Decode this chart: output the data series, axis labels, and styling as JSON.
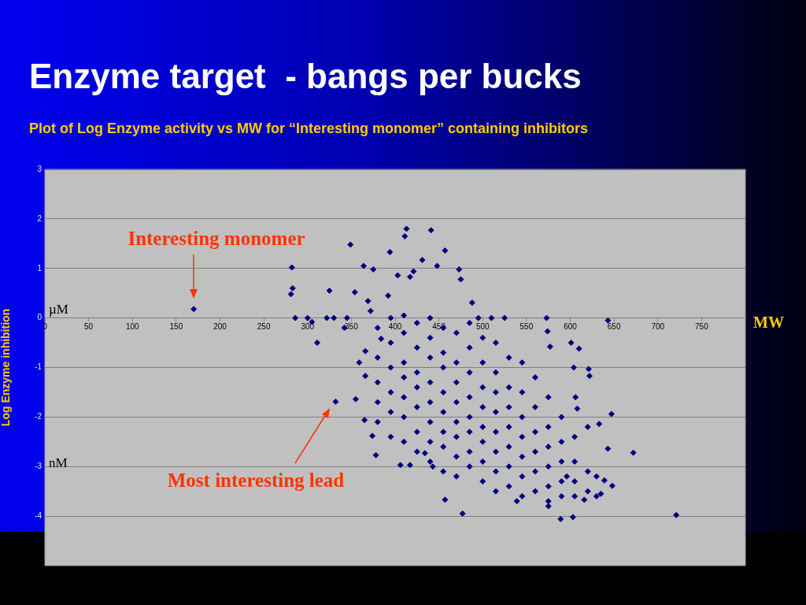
{
  "chart_data": {
    "type": "scatter",
    "title": "Enzyme target  - bangs per bucks",
    "subtitle": "Plot of Log Enzyme activity vs MW for “Interesting monomer” containing inhibitors",
    "xlabel": "MW",
    "ylabel": "Log Enzyme inhibition",
    "xlim": [
      0,
      800
    ],
    "xticks": [
      0,
      50,
      100,
      150,
      200,
      250,
      300,
      350,
      400,
      450,
      500,
      550,
      600,
      650,
      700,
      750
    ],
    "ylim": [
      -5,
      3
    ],
    "yticks": [
      -4,
      -3,
      -2,
      -1,
      0,
      1,
      2,
      3
    ],
    "grid": "y",
    "legend": false,
    "marker": "diamond",
    "annotations": [
      "Interesting monomer",
      "Most interesting lead",
      "µM",
      "nM"
    ],
    "series": [
      {
        "color": "#000080",
        "x": [
          170,
          332,
          349,
          282,
          283,
          281,
          286,
          300,
          305,
          311,
          325,
          322,
          330,
          345,
          342,
          364,
          375,
          394,
          413,
          411,
          441,
          431,
          457,
          448,
          473,
          475,
          421,
          417,
          403,
          354,
          369,
          372,
          392,
          488,
          495,
          510,
          525,
          573,
          574,
          577,
          601,
          610,
          643,
          604,
          621,
          622,
          606,
          608,
          647,
          633,
          672,
          643,
          721,
          603,
          589,
          477,
          457,
          539,
          575,
          616,
          635,
          648,
          639,
          596,
          378,
          374,
          365,
          355,
          366,
          359,
          366,
          384,
          406,
          417,
          434,
          443,
          380,
          380,
          380,
          380,
          380,
          395,
          395,
          395,
          395,
          395,
          395,
          410,
          410,
          410,
          410,
          410,
          410,
          410,
          425,
          425,
          425,
          425,
          425,
          425,
          425,
          440,
          440,
          440,
          440,
          440,
          440,
          440,
          440,
          455,
          455,
          455,
          455,
          455,
          455,
          455,
          455,
          470,
          470,
          470,
          470,
          470,
          470,
          470,
          470,
          485,
          485,
          485,
          485,
          485,
          485,
          485,
          485,
          500,
          500,
          500,
          500,
          500,
          500,
          500,
          500,
          515,
          515,
          515,
          515,
          515,
          515,
          515,
          515,
          530,
          530,
          530,
          530,
          530,
          530,
          530,
          545,
          545,
          545,
          545,
          545,
          545,
          545,
          560,
          560,
          560,
          560,
          560,
          560,
          575,
          575,
          575,
          575,
          575,
          575,
          590,
          590,
          590,
          590,
          590,
          605,
          605,
          605,
          605,
          620,
          620,
          620,
          630,
          630
        ],
        "values": [
          0.18,
          -1.69,
          1.48,
          1.02,
          0.6,
          0.48,
          0,
          0,
          -0.08,
          -0.5,
          0.55,
          0,
          0,
          0,
          -0.2,
          1.05,
          0.98,
          1.33,
          1.8,
          1.65,
          1.77,
          1.17,
          1.36,
          1.05,
          0.98,
          0.78,
          0.94,
          0.83,
          0.86,
          0.52,
          0.34,
          0.14,
          0.45,
          0.31,
          0,
          0,
          0,
          0,
          -0.27,
          -0.58,
          -0.5,
          -0.62,
          -0.05,
          -1,
          -1.03,
          -1.17,
          -1.6,
          -1.83,
          -1.94,
          -2.14,
          -2.72,
          -2.64,
          -3.98,
          -4.02,
          -4.06,
          -3.95,
          -3.67,
          -3.7,
          -3.8,
          -3.67,
          -3.55,
          -3.39,
          -3.28,
          -3.2,
          -2.77,
          -2.38,
          -2.06,
          -1.64,
          -1.17,
          -0.9,
          -0.67,
          -0.42,
          -2.97,
          -2.97,
          -2.73,
          -3,
          -0.2,
          -0.8,
          -1.3,
          -1.7,
          -2.1,
          0,
          -0.5,
          -1,
          -1.5,
          -1.9,
          -2.4,
          0.05,
          -0.3,
          -0.9,
          -1.2,
          -1.6,
          -2,
          -2.5,
          -0.1,
          -0.6,
          -1.1,
          -1.4,
          -1.8,
          -2.3,
          -2.7,
          0,
          -0.4,
          -0.8,
          -1.3,
          -1.7,
          -2.1,
          -2.5,
          -2.9,
          -0.2,
          -0.7,
          -1,
          -1.5,
          -1.9,
          -2.3,
          -2.6,
          -3.1,
          -0.3,
          -0.9,
          -1.3,
          -1.7,
          -2.1,
          -2.4,
          -2.8,
          -3.2,
          -0.1,
          -0.6,
          -1.1,
          -1.6,
          -2,
          -2.3,
          -2.7,
          -3,
          -0.4,
          -0.9,
          -1.4,
          -1.8,
          -2.2,
          -2.5,
          -2.9,
          -3.3,
          -0.5,
          -1.1,
          -1.5,
          -1.9,
          -2.3,
          -2.7,
          -3.1,
          -3.5,
          -0.8,
          -1.4,
          -1.8,
          -2.2,
          -2.6,
          -3,
          -3.4,
          -0.9,
          -1.5,
          -2,
          -2.4,
          -2.8,
          -3.2,
          -3.6,
          -1.2,
          -1.8,
          -2.3,
          -2.7,
          -3.1,
          -3.5,
          -1.6,
          -2.2,
          -2.6,
          -3,
          -3.4,
          -3.7,
          -2,
          -2.5,
          -2.9,
          -3.3,
          -3.6,
          -2.4,
          -2.9,
          -3.3,
          -3.6,
          -2.2,
          -3.1,
          -3.5,
          -3.2,
          -3.6
        ]
      }
    ]
  }
}
